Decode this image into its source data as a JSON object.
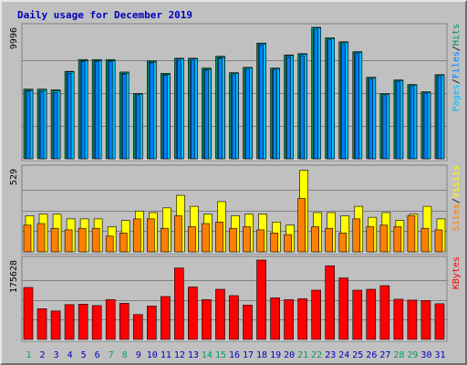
{
  "chart_data": {
    "type": "bar",
    "title": "Daily usage for December 2019",
    "categories": [
      "1",
      "2",
      "3",
      "4",
      "5",
      "6",
      "7",
      "8",
      "9",
      "10",
      "11",
      "12",
      "13",
      "14",
      "15",
      "16",
      "17",
      "18",
      "19",
      "20",
      "21",
      "22",
      "23",
      "24",
      "25",
      "26",
      "27",
      "28",
      "29",
      "30",
      "31"
    ],
    "weekend_days": [
      "1",
      "7",
      "8",
      "14",
      "15",
      "21",
      "22",
      "28",
      "29"
    ],
    "panels": [
      {
        "id": "pages-files-hits",
        "ymax_label": "9996",
        "ymax": 9996,
        "legend": [
          {
            "text": "Pages",
            "color": "#00c0ff"
          },
          {
            "text": "/",
            "color": "#000000"
          },
          {
            "text": "Files",
            "color": "#0080ff"
          },
          {
            "text": "/",
            "color": "#000000"
          },
          {
            "text": "Hits",
            "color": "#009060"
          }
        ],
        "series": [
          {
            "name": "Hits",
            "color": "#009060",
            "values": [
              5300,
              5300,
              5250,
              6650,
              7550,
              7550,
              7550,
              6600,
              4950,
              7450,
              6500,
              7650,
              7650,
              6900,
              7800,
              6550,
              6950,
              8800,
              6900,
              7900,
              8000,
              10000,
              9200,
              8900,
              8150,
              6200,
              4950,
              6000,
              5650,
              5100,
              6400
            ]
          },
          {
            "name": "Files",
            "color": "#0080ff",
            "values": [
              5150,
              5100,
              5050,
              6500,
              7400,
              7400,
              7400,
              6450,
              4800,
              7300,
              6350,
              7500,
              7500,
              6750,
              7650,
              6400,
              6800,
              8650,
              6750,
              7750,
              7850,
              9850,
              9050,
              8750,
              8000,
              6050,
              4800,
              5850,
              5500,
              4950,
              6250
            ]
          },
          {
            "name": "Pages",
            "color": "#00c0ff",
            "values": [
              5200,
              5200,
              5150,
              6600,
              7450,
              7450,
              7450,
              6500,
              4900,
              7350,
              6400,
              7600,
              7600,
              6800,
              7700,
              6500,
              6900,
              8750,
              6850,
              7850,
              7950,
              9950,
              9150,
              8850,
              8100,
              6150,
              4900,
              5950,
              5600,
              5050,
              6350
            ]
          }
        ]
      },
      {
        "id": "visits-sites",
        "ymax_label": "529",
        "ymax": 529,
        "legend": [
          {
            "text": "Sites",
            "color": "#ff8000"
          },
          {
            "text": "/",
            "color": "#000000"
          },
          {
            "text": "Visits",
            "color": "#ffff00"
          }
        ],
        "series": [
          {
            "name": "Visits",
            "color": "#ffff00",
            "values": [
              230,
              240,
              240,
              210,
              210,
              210,
              160,
              200,
              260,
              250,
              280,
              360,
              290,
              240,
              320,
              230,
              240,
              240,
              190,
              170,
              520,
              250,
              250,
              230,
              290,
              220,
              250,
              200,
              240,
              290,
              210
            ]
          },
          {
            "name": "Sites",
            "color": "#ff8000",
            "values": [
              170,
              180,
              150,
              140,
              150,
              150,
              100,
              120,
              210,
              210,
              150,
              230,
              160,
              180,
              190,
              150,
              160,
              140,
              120,
              110,
              340,
              160,
              150,
              120,
              210,
              160,
              170,
              160,
              230,
              150,
              140
            ]
          }
        ]
      },
      {
        "id": "kbytes",
        "ymax_label": "175628",
        "ymax": 175628,
        "legend": [
          {
            "text": "KBytes",
            "color": "#ff0000"
          }
        ],
        "series": [
          {
            "name": "KBytes",
            "color": "#ff0000",
            "values": [
              115000,
              68000,
              63000,
              77000,
              78000,
              75000,
              88000,
              80000,
              55000,
              74000,
              95000,
              158000,
              116000,
              88000,
              111000,
              97000,
              76000,
              175628,
              92000,
              88000,
              90000,
              109000,
              163000,
              136000,
              109000,
              111000,
              119000,
              89000,
              87000,
              86000,
              79000
            ]
          }
        ]
      }
    ],
    "colors": {
      "plot_background": "#c0c0c0",
      "title": "#0000c0",
      "weekday_label": "#0000c0",
      "weekend_label": "#00a060",
      "max_label": "#000000"
    }
  }
}
